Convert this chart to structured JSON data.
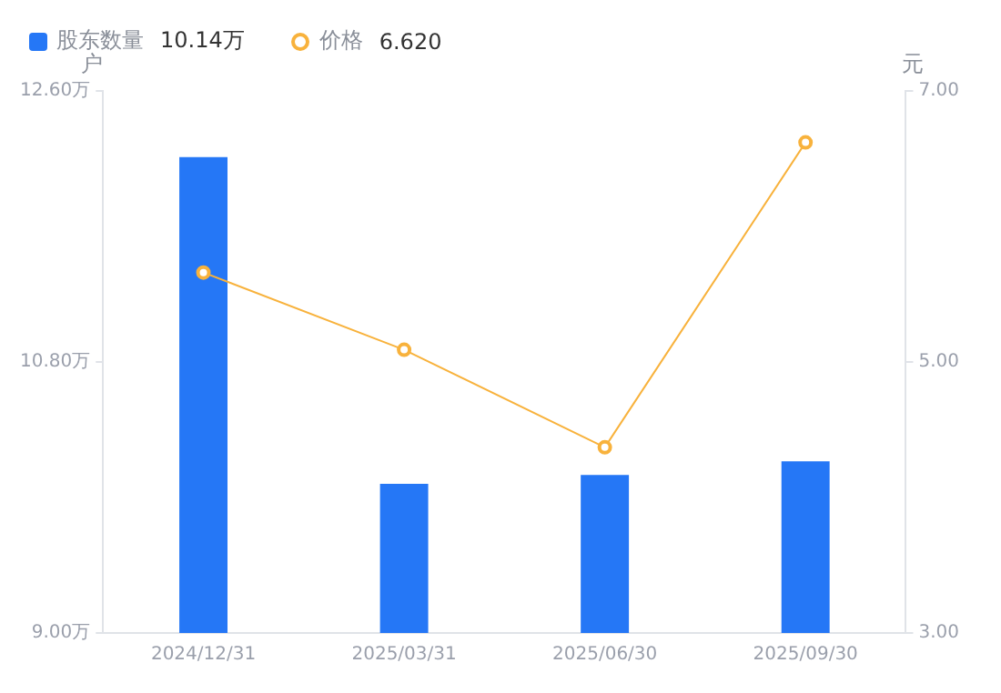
{
  "chart_data": {
    "type": "bar",
    "ylabel": "户",
    "y2label": "元",
    "categories": [
      "2024/12/31",
      "2025/03/31",
      "2025/06/30",
      "2025/09/30"
    ],
    "series": [
      {
        "name": "股东数量",
        "color": "#2577f6",
        "values": [
          12.16,
          9.99,
          10.05,
          10.14
        ]
      },
      {
        "name": "价格",
        "type": "line",
        "axis": "y2",
        "color": "#f8b23c",
        "values": [
          5.66,
          5.09,
          4.37,
          6.62
        ],
        "marker": "circle"
      }
    ],
    "ylim": [
      9,
      12.6
    ],
    "yticks": [
      {
        "value": 9,
        "label": "9.00万"
      },
      {
        "value": 10.8,
        "label": "10.80万"
      },
      {
        "value": 12.6,
        "label": "12.60万"
      }
    ],
    "y2lim": [
      3,
      7
    ],
    "y2ticks": [
      {
        "value": 3,
        "label": "3.00"
      },
      {
        "value": 5,
        "label": "5.00"
      },
      {
        "value": 7,
        "label": "7.00"
      }
    ],
    "annotations": [
      "10.14万",
      "6.620"
    ],
    "legend": "top left",
    "grid": false
  }
}
